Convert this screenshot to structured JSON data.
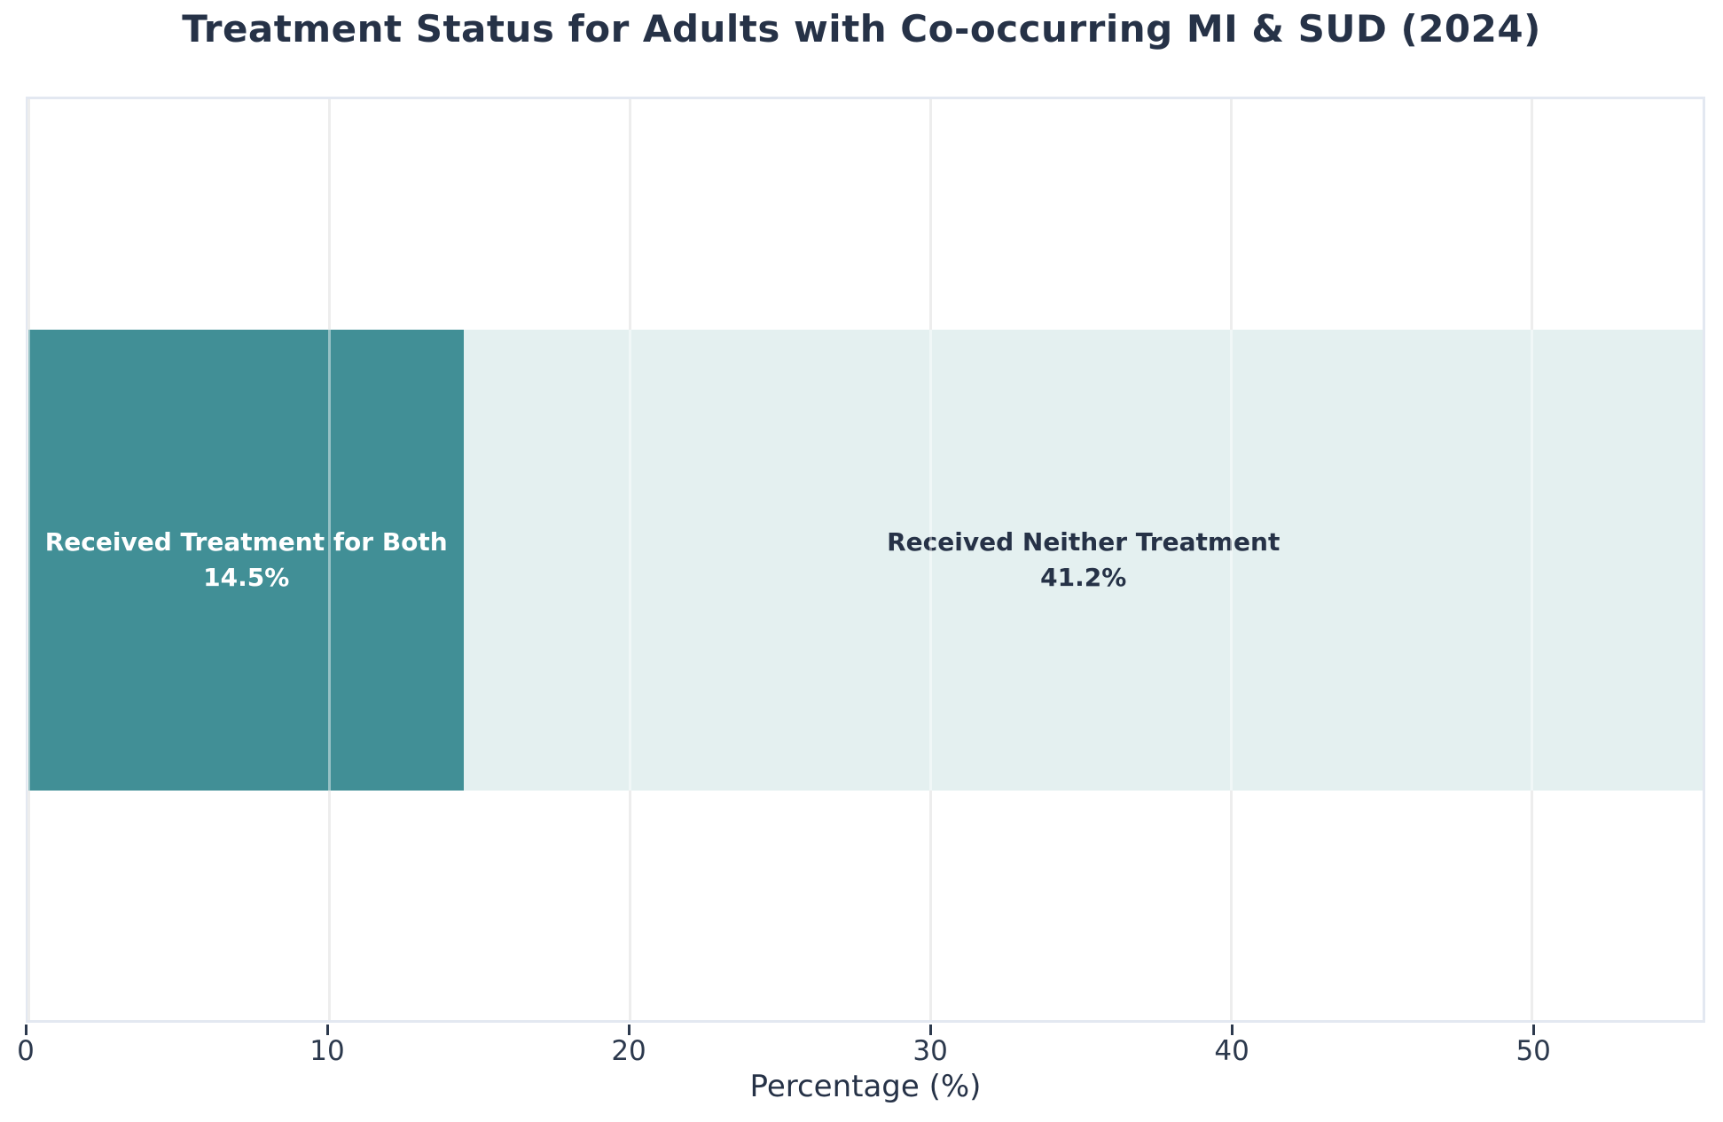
{
  "chart_data": {
    "type": "bar",
    "orientation": "horizontal",
    "stacked": true,
    "title": "Treatment Status for Adults with Co-occurring MI & SUD (2024)",
    "xlabel": "Percentage (%)",
    "xlim": [
      0,
      55.7
    ],
    "xticks": [
      0,
      10,
      20,
      30,
      40,
      50
    ],
    "grid": "vertical",
    "legend": "none",
    "segments": [
      {
        "label": "Received Treatment for Both",
        "value": 14.5,
        "display_value": "14.5%",
        "color": "#418f96",
        "text_color": "#ffffff"
      },
      {
        "label": "Received Neither Treatment",
        "value": 41.2,
        "display_value": "41.2%",
        "color": "#e4f0f0",
        "text_color": "#263247"
      }
    ]
  }
}
